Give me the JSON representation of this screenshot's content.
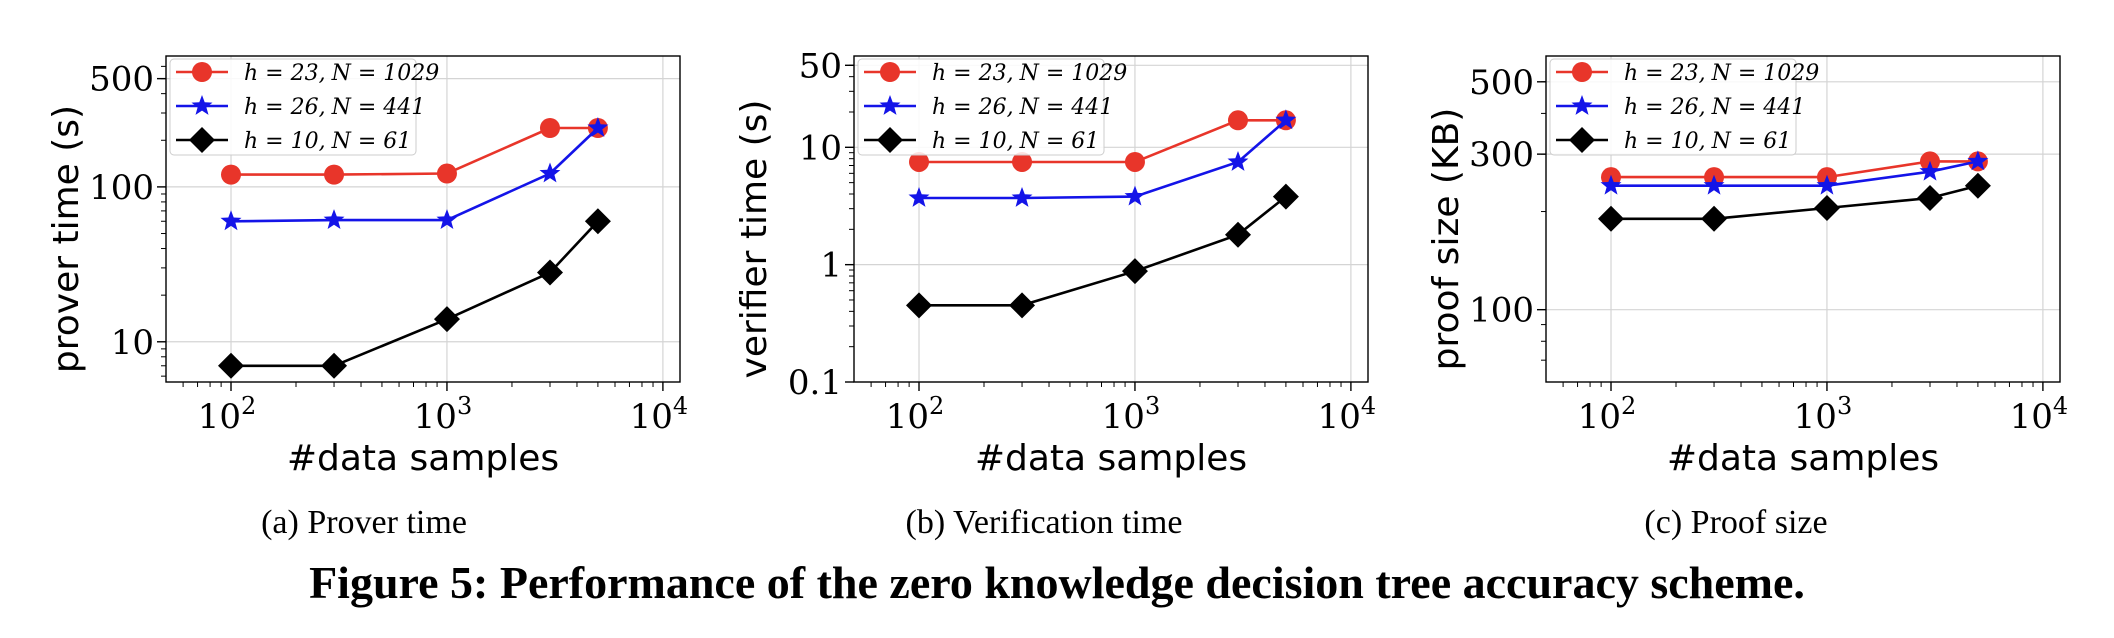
{
  "chart_data": [
    {
      "type": "line",
      "ylabel": "prover time (s)",
      "xlabel": "#data samples",
      "xscale": "log",
      "yscale": "log",
      "xlim": [
        50,
        12000
      ],
      "ylim": [
        5.5,
        700
      ],
      "xticks": [
        {
          "v": 100,
          "exp": "2"
        },
        {
          "v": 1000,
          "exp": "3"
        },
        {
          "v": 10000,
          "exp": "4"
        }
      ],
      "yticks": [
        {
          "v": 10,
          "label": "10"
        },
        {
          "v": 100,
          "label": "100"
        },
        {
          "v": 500,
          "label": "500"
        }
      ],
      "grid": true,
      "legend": "top-left",
      "x": [
        100,
        300,
        1000,
        3000,
        5000
      ],
      "series": [
        {
          "name_h": "h = 23,",
          "name_n": "N = 1029",
          "color": "#e8352a",
          "marker": "circle",
          "values": [
            120,
            120,
            122,
            240,
            240
          ]
        },
        {
          "name_h": "h = 26,",
          "name_n": "N = 441",
          "color": "#1414e8",
          "marker": "star",
          "values": [
            60,
            61,
            61,
            122,
            240
          ]
        },
        {
          "name_h": "h = 10,",
          "name_n": "N = 61",
          "color": "#000000",
          "marker": "diamond",
          "values": [
            7,
            7,
            14,
            28,
            60
          ]
        }
      ]
    },
    {
      "type": "line",
      "ylabel": "verifier time (s)",
      "xlabel": "#data samples",
      "xscale": "log",
      "yscale": "log",
      "xlim": [
        50,
        12000
      ],
      "ylim": [
        0.1,
        60
      ],
      "xticks": [
        {
          "v": 100,
          "exp": "2"
        },
        {
          "v": 1000,
          "exp": "3"
        },
        {
          "v": 10000,
          "exp": "4"
        }
      ],
      "yticks": [
        {
          "v": 0.1,
          "label": "0.1"
        },
        {
          "v": 1,
          "label": "1"
        },
        {
          "v": 10,
          "label": "10"
        },
        {
          "v": 50,
          "label": "50"
        }
      ],
      "grid": true,
      "legend": "top-left",
      "x": [
        100,
        300,
        1000,
        3000,
        5000
      ],
      "series": [
        {
          "name_h": "h = 23,",
          "name_n": "N = 1029",
          "color": "#e8352a",
          "marker": "circle",
          "values": [
            7.5,
            7.5,
            7.5,
            17,
            17
          ]
        },
        {
          "name_h": "h = 26,",
          "name_n": "N = 441",
          "color": "#1414e8",
          "marker": "star",
          "values": [
            3.7,
            3.7,
            3.8,
            7.5,
            17
          ]
        },
        {
          "name_h": "h = 10,",
          "name_n": "N = 61",
          "color": "#000000",
          "marker": "diamond",
          "values": [
            0.45,
            0.45,
            0.88,
            1.8,
            3.8
          ]
        }
      ]
    },
    {
      "type": "line",
      "ylabel": "proof size (KB)",
      "xlabel": "#data samples",
      "xscale": "log",
      "yscale": "log",
      "xlim": [
        50,
        12000
      ],
      "ylim": [
        60,
        600
      ],
      "xticks": [
        {
          "v": 100,
          "exp": "2"
        },
        {
          "v": 1000,
          "exp": "3"
        },
        {
          "v": 10000,
          "exp": "4"
        }
      ],
      "yticks": [
        {
          "v": 100,
          "label": "100"
        },
        {
          "v": 300,
          "label": "300"
        },
        {
          "v": 500,
          "label": "500"
        }
      ],
      "grid": true,
      "legend": "top-left",
      "x": [
        100,
        300,
        1000,
        3000,
        5000
      ],
      "series": [
        {
          "name_h": "h = 23,",
          "name_n": "N = 1029",
          "color": "#e8352a",
          "marker": "circle",
          "values": [
            255,
            255,
            255,
            285,
            285
          ]
        },
        {
          "name_h": "h = 26,",
          "name_n": "N = 441",
          "color": "#1414e8",
          "marker": "star",
          "values": [
            240,
            240,
            240,
            265,
            285
          ]
        },
        {
          "name_h": "h = 10,",
          "name_n": "N = 61",
          "color": "#000000",
          "marker": "diamond",
          "values": [
            190,
            190,
            205,
            220,
            240
          ]
        }
      ]
    }
  ],
  "subcaptions": [
    "(a)  Prover time",
    "(b)  Verification time",
    "(c)  Proof size"
  ],
  "figure_caption": "Figure 5:  Performance of the zero knowledge decision tree accuracy scheme."
}
